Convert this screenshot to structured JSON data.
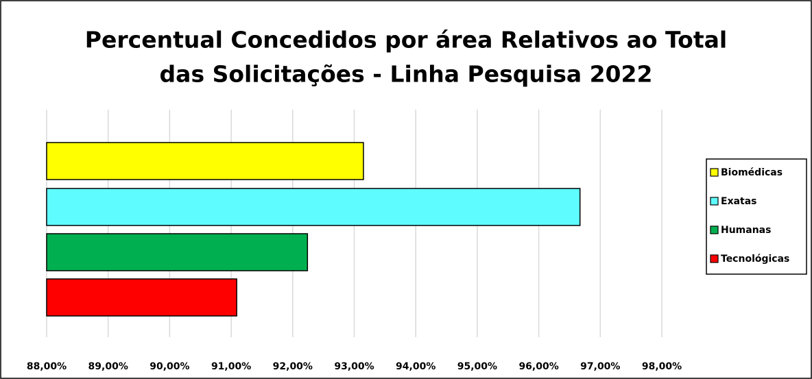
{
  "chart_data": {
    "type": "bar",
    "orientation": "horizontal",
    "title": [
      "Percentual Concedidos por área Relativos ao Total",
      "das Solicitações - Linha Pesquisa 2022"
    ],
    "series": [
      {
        "name": "Biomédicas",
        "color": "#ffff00",
        "values": [
          93.15
        ]
      },
      {
        "name": "Exatas",
        "color": "#5ffcff",
        "values": [
          96.67
        ]
      },
      {
        "name": "Humanas",
        "color": "#00b050",
        "values": [
          92.24
        ]
      },
      {
        "name": "Tecnológicas",
        "color": "#ff0000",
        "values": [
          91.09
        ]
      }
    ],
    "xlim": [
      88,
      98
    ],
    "xticks": [
      {
        "value": 88,
        "label": "88,00%"
      },
      {
        "value": 89,
        "label": "89,00%"
      },
      {
        "value": 90,
        "label": "90,00%"
      },
      {
        "value": 91,
        "label": "91,00%"
      },
      {
        "value": 92,
        "label": "92,00%"
      },
      {
        "value": 93,
        "label": "93,00%"
      },
      {
        "value": 94,
        "label": "94,00%"
      },
      {
        "value": 95,
        "label": "95,00%"
      },
      {
        "value": 96,
        "label": "96,00%"
      },
      {
        "value": 97,
        "label": "97,00%"
      },
      {
        "value": 98,
        "label": "98,00%"
      }
    ],
    "grid": true,
    "legend": "right"
  }
}
